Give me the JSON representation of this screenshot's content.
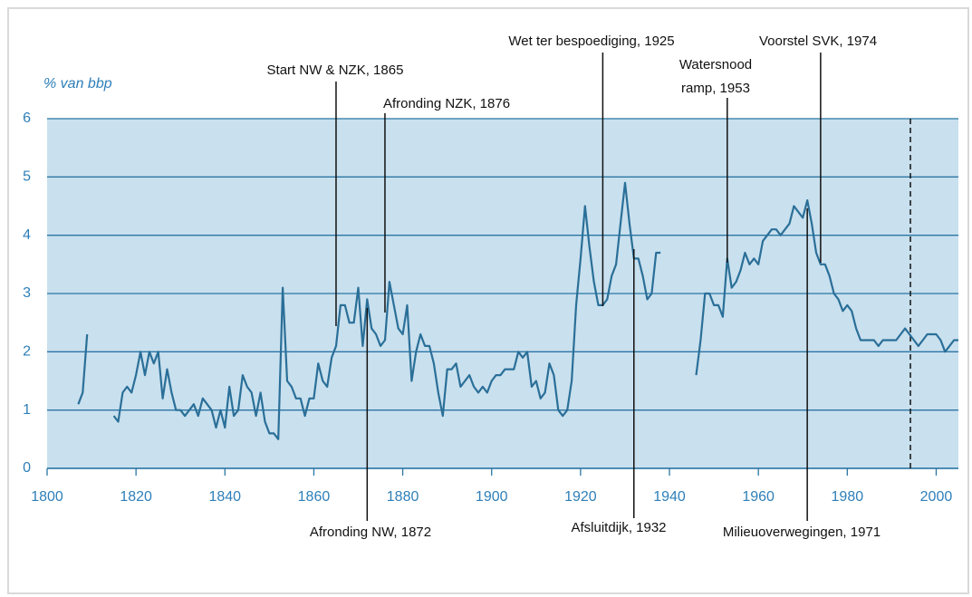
{
  "chart_data": {
    "type": "line",
    "ylabel": "% van bbp",
    "xlim": [
      1800,
      2005
    ],
    "ylim": [
      0,
      6
    ],
    "xticks": [
      1800,
      1820,
      1840,
      1860,
      1880,
      1900,
      1920,
      1940,
      1960,
      1980,
      2000
    ],
    "yticks": [
      0,
      1,
      2,
      3,
      4,
      5,
      6
    ],
    "grid": true,
    "series": [
      {
        "color": "#2a6f98",
        "x": [
          1807,
          1808,
          1809,
          1810,
          1811,
          1812,
          1813,
          1814,
          1815,
          1816,
          1817,
          1818,
          1819,
          1820,
          1821,
          1822,
          1823,
          1824,
          1825,
          1826,
          1827,
          1828,
          1829,
          1830,
          1831,
          1832,
          1833,
          1834,
          1835,
          1836,
          1837,
          1838,
          1839,
          1840,
          1841,
          1842,
          1843,
          1844,
          1845,
          1846,
          1847,
          1848,
          1849,
          1850,
          1851,
          1852,
          1853,
          1854,
          1855,
          1856,
          1857,
          1858,
          1859,
          1860,
          1861,
          1862,
          1863,
          1864,
          1865,
          1866,
          1867,
          1868,
          1869,
          1870,
          1871,
          1872,
          1873,
          1874,
          1875,
          1876,
          1877,
          1878,
          1879,
          1880,
          1881,
          1882,
          1883,
          1884,
          1885,
          1886,
          1887,
          1888,
          1889,
          1890,
          1891,
          1892,
          1893,
          1894,
          1895,
          1896,
          1897,
          1898,
          1899,
          1900,
          1901,
          1902,
          1903,
          1904,
          1905,
          1906,
          1907,
          1908,
          1909,
          1910,
          1911,
          1912,
          1913,
          1914,
          1915,
          1916,
          1917,
          1918,
          1919,
          1920,
          1921,
          1922,
          1923,
          1924,
          1925,
          1926,
          1927,
          1928,
          1929,
          1930,
          1931,
          1932,
          1933,
          1934,
          1935,
          1936,
          1937,
          1938,
          1939,
          1940,
          1941,
          1942,
          1943,
          1944,
          1945,
          1946,
          1947,
          1948,
          1949,
          1950,
          1951,
          1952,
          1953,
          1954,
          1955,
          1956,
          1957,
          1958,
          1959,
          1960,
          1961,
          1962,
          1963,
          1964,
          1965,
          1966,
          1967,
          1968,
          1969,
          1970,
          1971,
          1972,
          1973,
          1974,
          1975,
          1976,
          1977,
          1978,
          1979,
          1980,
          1981,
          1982,
          1983,
          1984,
          1985,
          1986,
          1987,
          1988,
          1989,
          1990,
          1991,
          1992,
          1993,
          1994,
          1995,
          1996,
          1997,
          1998,
          1999,
          2000,
          2001,
          2002,
          2003,
          2004,
          2005
        ],
        "values": [
          1.1,
          1.3,
          2.3,
          null,
          null,
          null,
          null,
          null,
          0.9,
          0.8,
          1.3,
          1.4,
          1.3,
          1.6,
          2.0,
          1.6,
          2.0,
          1.8,
          2.0,
          1.2,
          1.7,
          1.3,
          1.0,
          1.0,
          0.9,
          1.0,
          1.1,
          0.9,
          1.2,
          1.1,
          1.0,
          0.7,
          1.0,
          0.7,
          1.4,
          0.9,
          1.0,
          1.6,
          1.4,
          1.3,
          0.9,
          1.3,
          0.8,
          0.6,
          0.6,
          0.5,
          3.1,
          1.5,
          1.4,
          1.2,
          1.2,
          0.9,
          1.2,
          1.2,
          1.8,
          1.5,
          1.4,
          1.9,
          2.1,
          2.8,
          2.8,
          2.5,
          2.5,
          3.1,
          2.1,
          2.9,
          2.4,
          2.3,
          2.1,
          2.2,
          3.2,
          2.8,
          2.4,
          2.3,
          2.8,
          1.5,
          2.0,
          2.3,
          2.1,
          2.1,
          1.8,
          1.3,
          0.9,
          1.7,
          1.7,
          1.8,
          1.4,
          1.5,
          1.6,
          1.4,
          1.3,
          1.4,
          1.3,
          1.5,
          1.6,
          1.6,
          1.7,
          1.7,
          1.7,
          2.0,
          1.9,
          2.0,
          1.4,
          1.5,
          1.2,
          1.3,
          1.8,
          1.6,
          1.0,
          0.9,
          1.0,
          1.5,
          2.8,
          3.6,
          4.5,
          3.8,
          3.2,
          2.8,
          2.8,
          2.9,
          3.3,
          3.5,
          4.2,
          4.9,
          4.2,
          3.6,
          3.6,
          3.3,
          2.9,
          3.0,
          3.7,
          3.7,
          null,
          null,
          null,
          null,
          null,
          null,
          null,
          1.6,
          2.2,
          3.0,
          3.0,
          2.8,
          2.8,
          2.6,
          3.6,
          3.1,
          3.2,
          3.4,
          3.7,
          3.5,
          3.6,
          3.5,
          3.9,
          4.0,
          4.1,
          4.1,
          4.0,
          4.1,
          4.2,
          4.5,
          4.4,
          4.3,
          4.6,
          4.2,
          3.7,
          3.5,
          3.5,
          3.3,
          3.0,
          2.9,
          2.7,
          2.8,
          2.7,
          2.4,
          2.2,
          2.2,
          2.2,
          2.2,
          2.1,
          2.2,
          2.2,
          2.2,
          2.2,
          2.3,
          2.4,
          2.3,
          2.2,
          2.1,
          2.2,
          2.3,
          2.3,
          2.3,
          2.2,
          2.0,
          2.1,
          2.2,
          2.2
        ]
      }
    ],
    "annotations": [
      {
        "text": [
          "Start NW & NZK, 1865"
        ],
        "x": 1865
      },
      {
        "text": [
          "Afronding NZK, 1876"
        ],
        "x": 1876
      },
      {
        "text": [
          "Afronding NW, 1872"
        ],
        "x": 1872
      },
      {
        "text": [
          "Wet ter bespoediging, 1925"
        ],
        "x": 1925
      },
      {
        "text": [
          "Afsluitdijk, 1932"
        ],
        "x": 1932
      },
      {
        "text": [
          "Watersnood",
          "ramp, 1953"
        ],
        "x": 1953
      },
      {
        "text": [
          "Voorstel SVK, 1974"
        ],
        "x": 1974
      },
      {
        "text": [
          "Milieuoverwegingen, 1971"
        ],
        "x": 1971
      }
    ]
  }
}
